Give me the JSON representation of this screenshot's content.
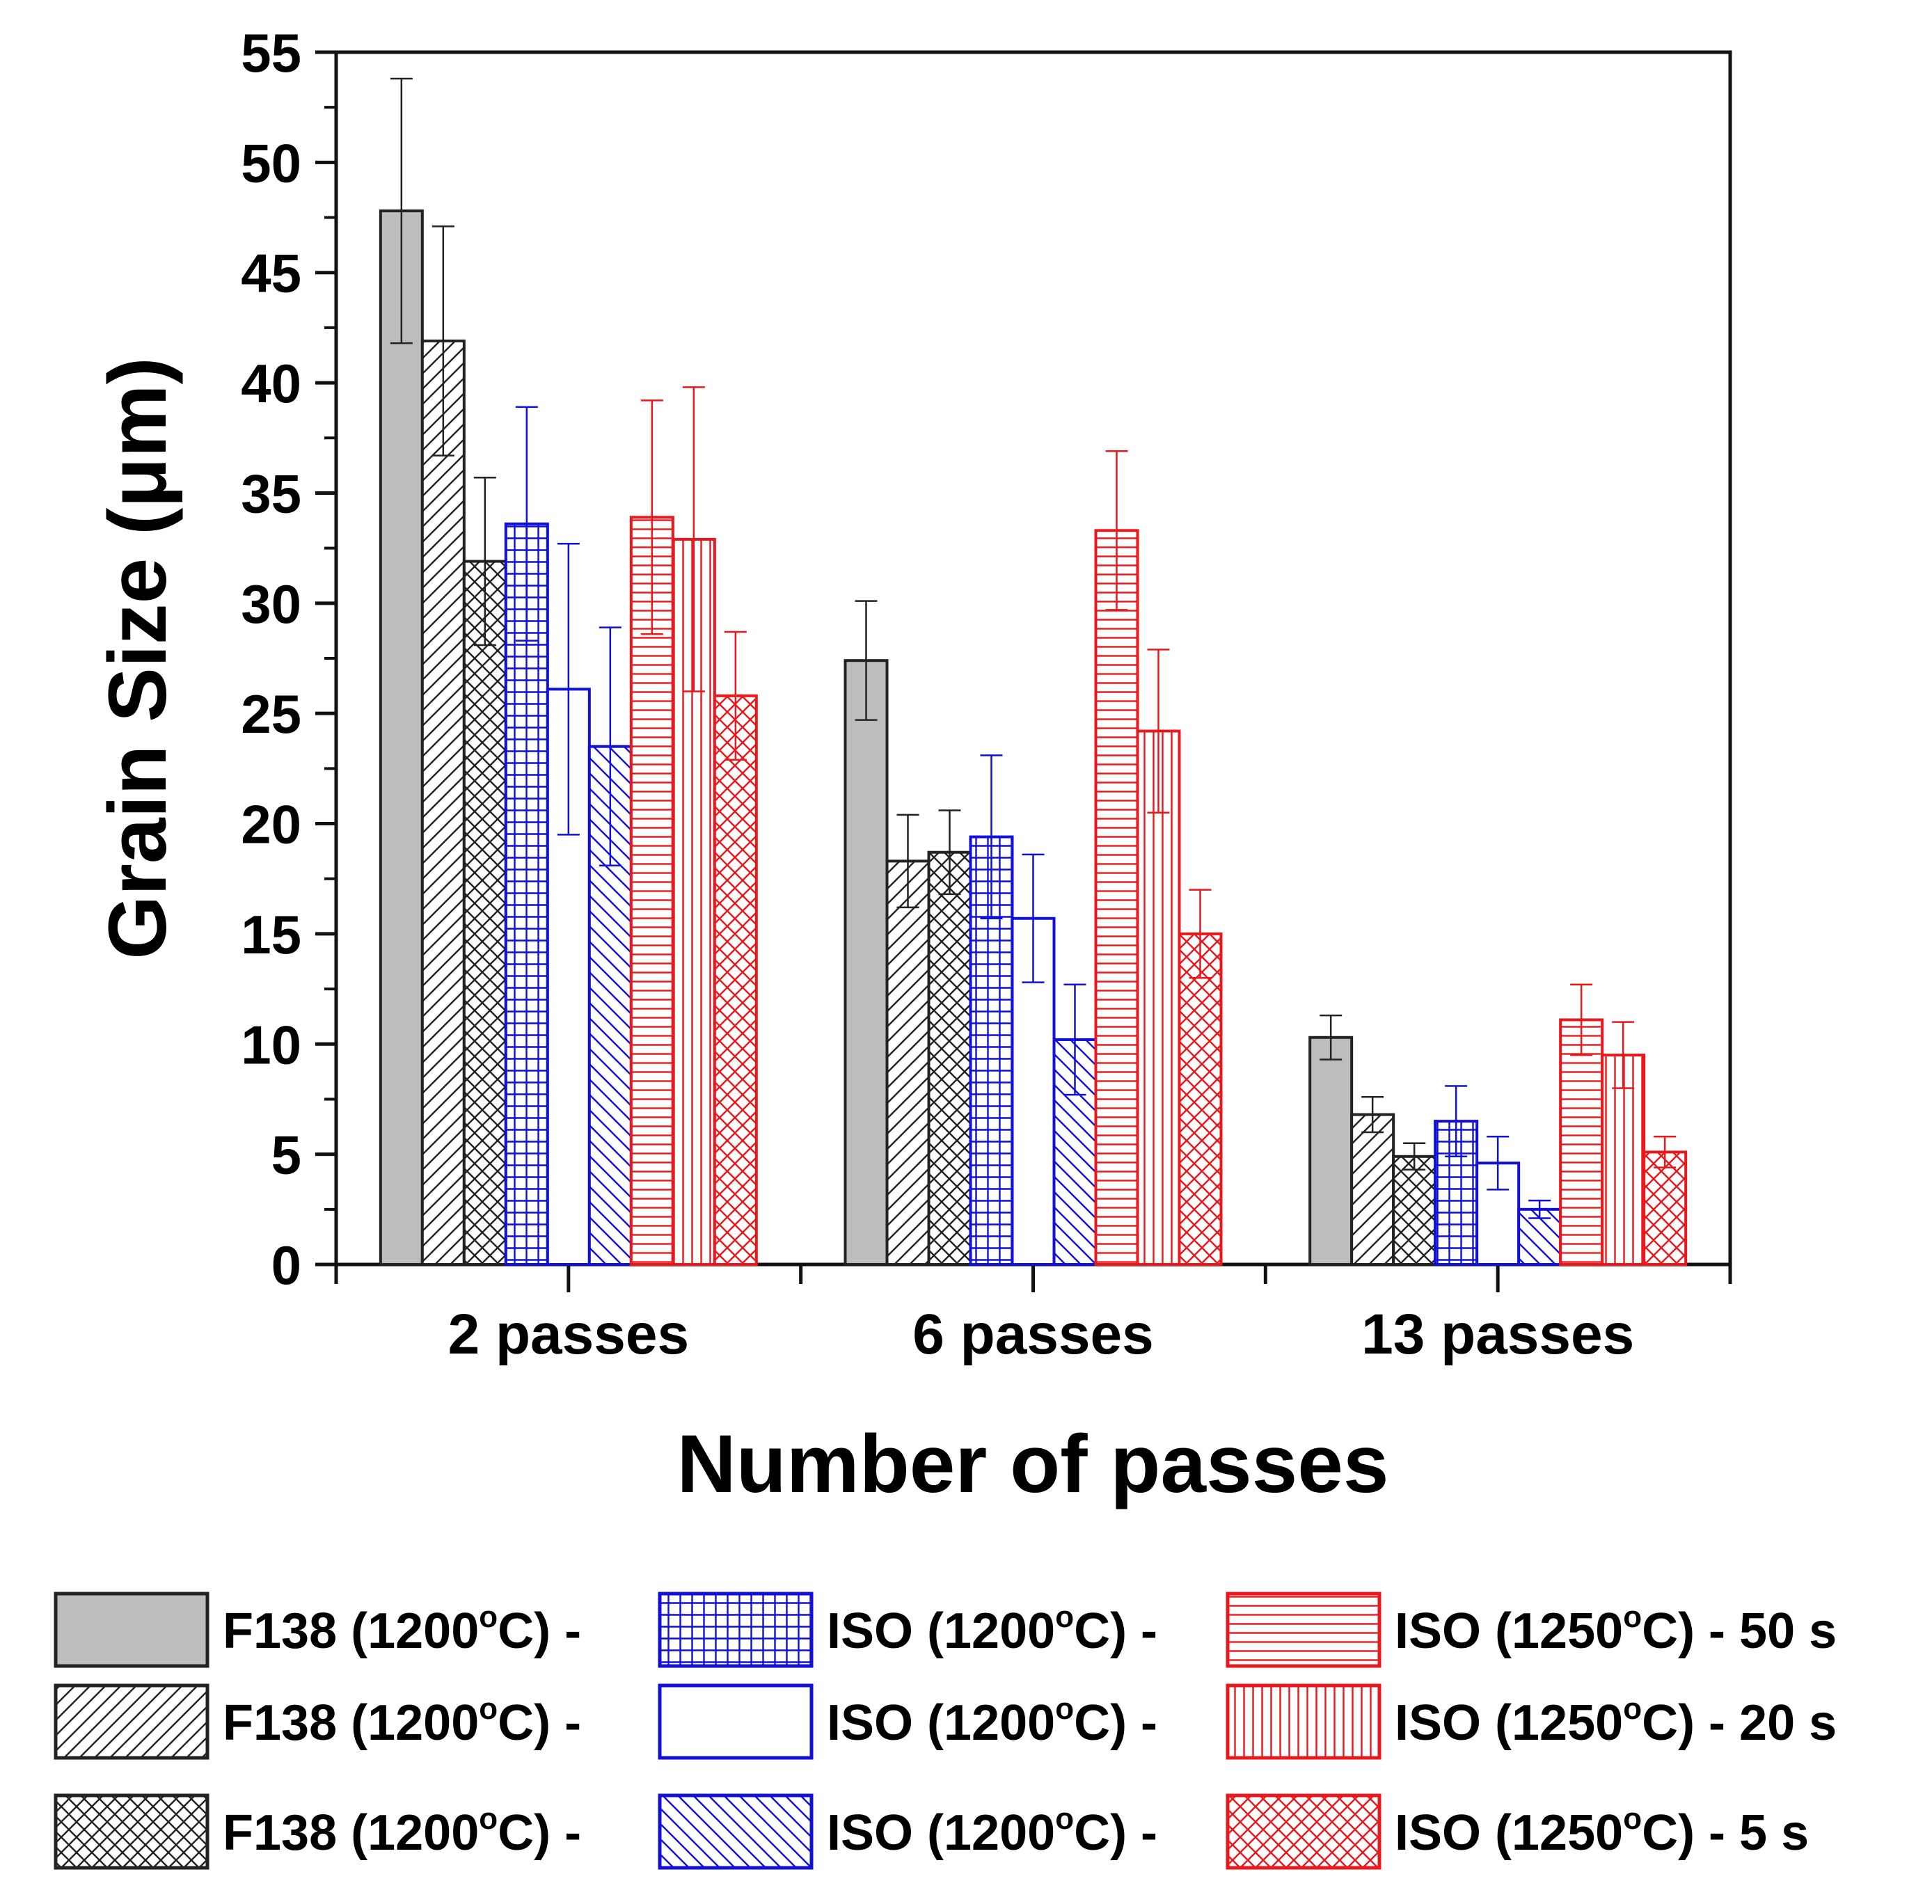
{
  "colors": {
    "black": "#222222",
    "gray_fill": "#bdbdbd",
    "blue": "#1010d8",
    "red": "#e8181c"
  },
  "chart_data": {
    "type": "bar",
    "title": "",
    "xlabel": "Number of passes",
    "ylabel": "Grain Size (μm)",
    "ylim": [
      0,
      55
    ],
    "yticks": [
      "0",
      "5",
      "10",
      "15",
      "20",
      "25",
      "30",
      "35",
      "40",
      "45",
      "50",
      "55"
    ],
    "categories": [
      "2 passes",
      "6 passes",
      "13 passes"
    ],
    "legend_position": "bottom",
    "series": [
      {
        "name": "F138 (1200°C) -",
        "color": "black",
        "pattern": "solid-gray",
        "values": [
          47.8,
          27.4,
          10.3
        ],
        "errors": [
          6.0,
          2.7,
          1.0
        ]
      },
      {
        "name": "F138 (1200°C) -",
        "color": "black",
        "pattern": "diag-up",
        "values": [
          41.9,
          18.3,
          6.8
        ],
        "errors": [
          5.2,
          2.1,
          0.8
        ]
      },
      {
        "name": "F138 (1200°C) -",
        "color": "black",
        "pattern": "diag-cross",
        "values": [
          31.9,
          18.7,
          4.9
        ],
        "errors": [
          3.8,
          1.9,
          0.6
        ]
      },
      {
        "name": "ISO (1200°C) -",
        "color": "blue",
        "pattern": "grid",
        "values": [
          33.6,
          19.4,
          6.5
        ],
        "errors": [
          5.3,
          3.7,
          1.6
        ]
      },
      {
        "name": "ISO (1200°C) -",
        "color": "blue",
        "pattern": "open",
        "values": [
          26.1,
          15.7,
          4.6
        ],
        "errors": [
          6.6,
          2.9,
          1.2
        ]
      },
      {
        "name": "ISO (1200°C) -",
        "color": "blue",
        "pattern": "diag-down",
        "values": [
          23.5,
          10.2,
          2.5
        ],
        "errors": [
          5.4,
          2.5,
          0.4
        ]
      },
      {
        "name": "ISO (1250°C) - 50 s",
        "color": "red",
        "pattern": "horizontal",
        "values": [
          33.9,
          33.3,
          11.1
        ],
        "errors": [
          5.3,
          3.6,
          1.6
        ]
      },
      {
        "name": "ISO (1250°C) - 20 s",
        "color": "red",
        "pattern": "vertical",
        "values": [
          32.9,
          24.2,
          9.5
        ],
        "errors": [
          6.9,
          3.7,
          1.5
        ]
      },
      {
        "name": "ISO (1250°C) - 5 s",
        "color": "red",
        "pattern": "diag-cross",
        "values": [
          25.8,
          15.0,
          5.1
        ],
        "errors": [
          2.9,
          2.0,
          0.7
        ]
      }
    ]
  }
}
